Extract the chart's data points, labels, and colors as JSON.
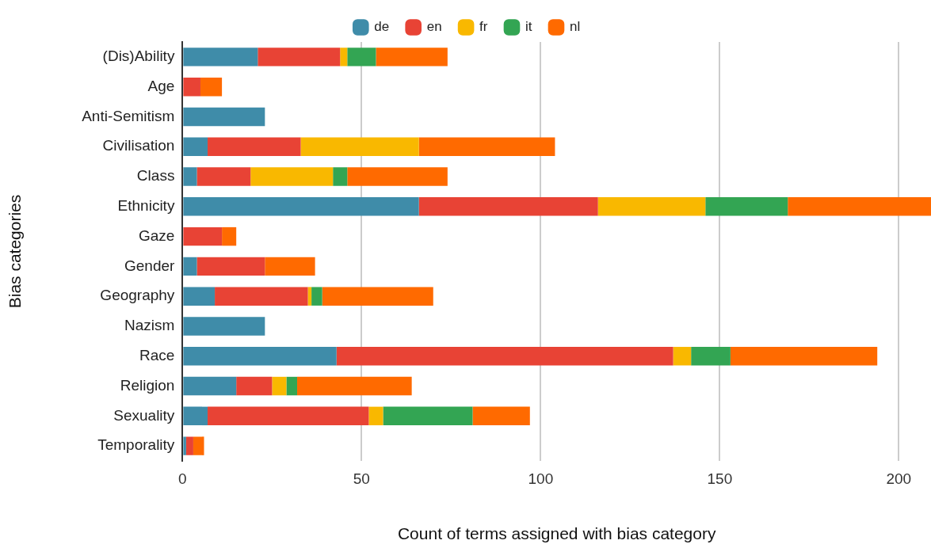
{
  "chart_data": {
    "type": "bar",
    "orientation": "horizontal",
    "stacked": true,
    "xlabel": "Count of terms assigned with bias category",
    "ylabel": "Bias categories",
    "categories": [
      "(Dis)Ability",
      "Age",
      "Anti-Semitism",
      "Civilisation",
      "Class",
      "Ethnicity",
      "Gaze",
      "Gender",
      "Geography",
      "Nazism",
      "Race",
      "Religion",
      "Sexuality",
      "Temporality"
    ],
    "series": [
      {
        "name": "de",
        "color": "#3f8ca9",
        "values": [
          21,
          null,
          23,
          7,
          4,
          66,
          null,
          4,
          9,
          23,
          43,
          15,
          7,
          1
        ]
      },
      {
        "name": "en",
        "color": "#e84335",
        "values": [
          23,
          5,
          null,
          26,
          15,
          50,
          11,
          19,
          26,
          null,
          94,
          10,
          45,
          2
        ]
      },
      {
        "name": "fr",
        "color": "#f9b800",
        "values": [
          2,
          null,
          null,
          33,
          23,
          30,
          null,
          null,
          1,
          null,
          5,
          4,
          4,
          null
        ]
      },
      {
        "name": "it",
        "color": "#33a553",
        "values": [
          8,
          null,
          null,
          null,
          4,
          23,
          null,
          null,
          3,
          null,
          11,
          3,
          25,
          null
        ]
      },
      {
        "name": "nl",
        "color": "#ff6a00",
        "values": [
          20,
          6,
          null,
          38,
          28,
          40,
          4,
          14,
          31,
          null,
          41,
          32,
          16,
          3
        ]
      }
    ],
    "xlim": [
      0,
      209
    ],
    "xticks": [
      0,
      50,
      100,
      150,
      200
    ],
    "grid": "x",
    "legend": "top"
  }
}
